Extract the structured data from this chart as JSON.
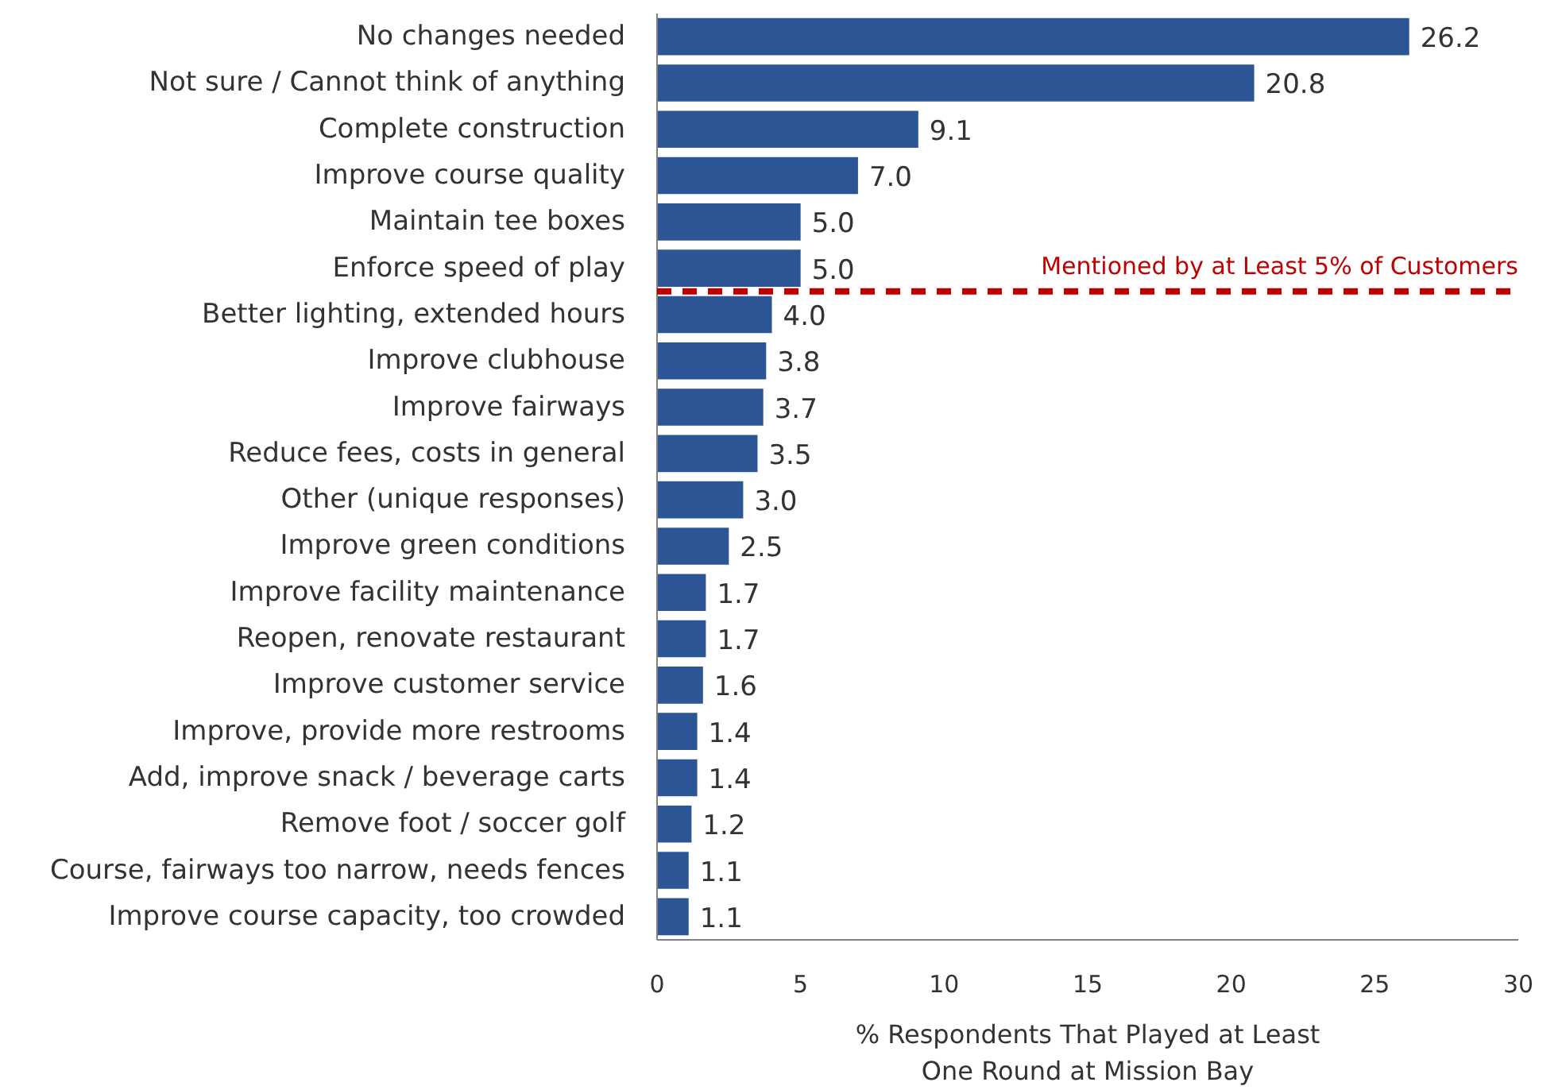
{
  "chart_data": {
    "type": "bar",
    "orientation": "horizontal",
    "categories": [
      "No changes needed",
      "Not sure / Cannot think of anything",
      "Complete construction",
      "Improve course quality",
      "Maintain tee boxes",
      "Enforce speed of play",
      "Better lighting, extended hours",
      "Improve clubhouse",
      "Improve fairways",
      "Reduce fees, costs in general",
      "Other (unique responses)",
      "Improve green conditions",
      "Improve facility maintenance",
      "Reopen, renovate restaurant",
      "Improve customer service",
      "Improve, provide more restrooms",
      "Add, improve snack / beverage carts",
      "Remove foot / soccer golf",
      "Course, fairways too narrow, needs fences",
      "Improve course capacity, too crowded"
    ],
    "values": [
      26.2,
      20.8,
      9.1,
      7.0,
      5.0,
      5.0,
      4.0,
      3.8,
      3.7,
      3.5,
      3.0,
      2.5,
      1.7,
      1.7,
      1.6,
      1.4,
      1.4,
      1.2,
      1.1,
      1.1
    ],
    "value_labels": [
      "26.2",
      "20.8",
      "9.1",
      "7.0",
      "5.0",
      "5.0",
      "4.0",
      "3.8",
      "3.7",
      "3.5",
      "3.0",
      "2.5",
      "1.7",
      "1.7",
      "1.6",
      "1.4",
      "1.4",
      "1.2",
      "1.1",
      "1.1"
    ],
    "color": "#2b5594",
    "xlabel": "% Respondents That Played at Least\nOne Round at Mission Bay",
    "xlim": [
      0,
      30
    ],
    "xticks": [
      0,
      5,
      10,
      15,
      20,
      25,
      30
    ],
    "ref_lines": [
      {
        "axis": "y",
        "value": "Enforce speed of play",
        "label": "Mentioned by at Least 5% of Customers",
        "color": "#c00000",
        "line_style": "dashed"
      }
    ],
    "grid": false
  }
}
